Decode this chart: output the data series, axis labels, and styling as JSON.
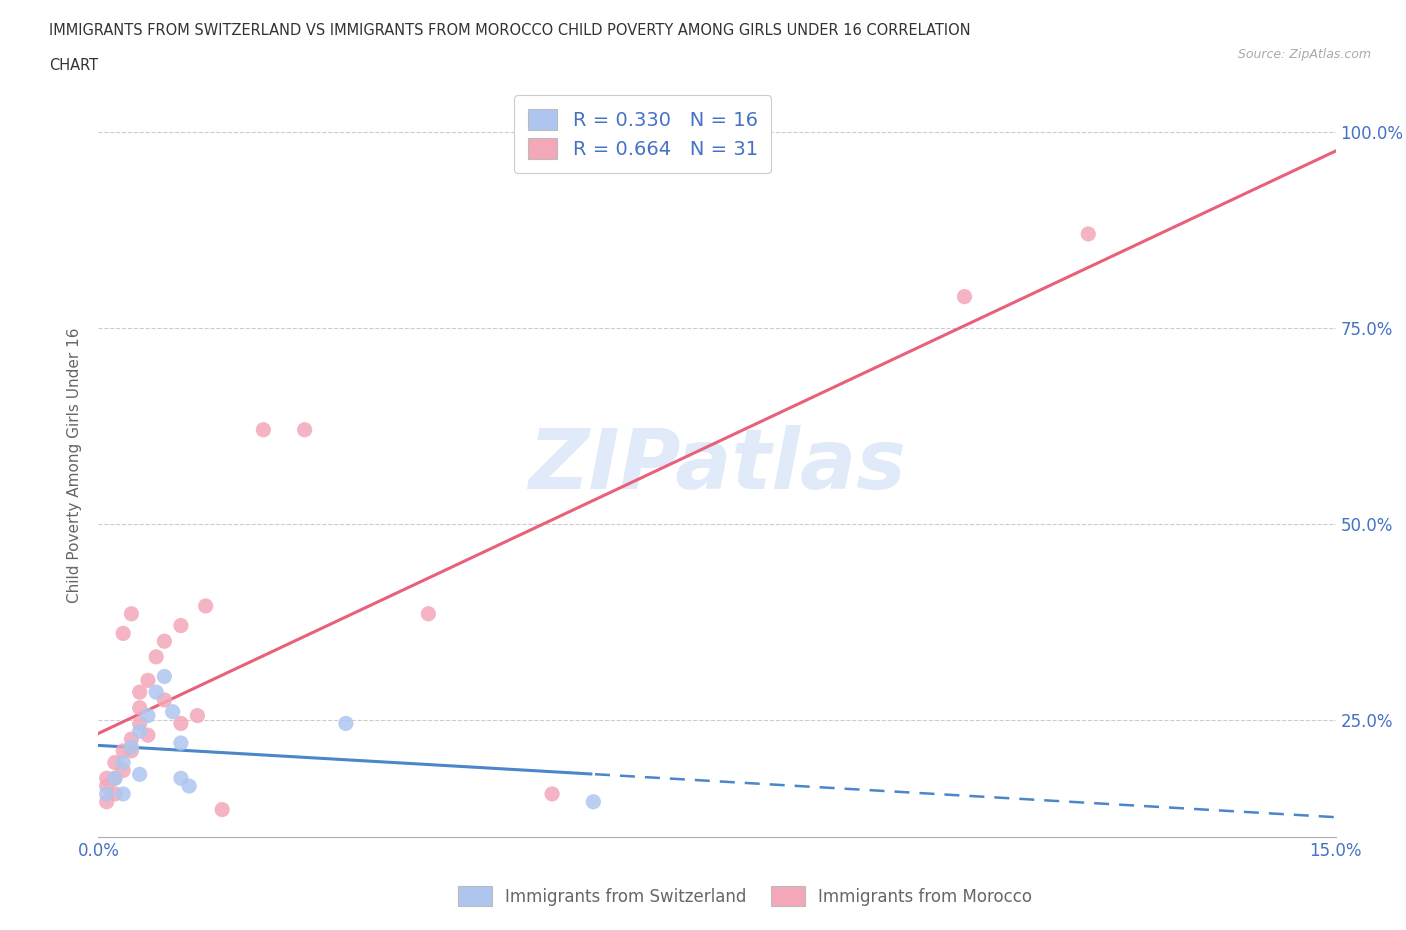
{
  "title_line1": "IMMIGRANTS FROM SWITZERLAND VS IMMIGRANTS FROM MOROCCO CHILD POVERTY AMONG GIRLS UNDER 16 CORRELATION",
  "title_line2": "CHART",
  "source": "Source: ZipAtlas.com",
  "ylabel": "Child Poverty Among Girls Under 16",
  "xlim": [
    0.0,
    0.15
  ],
  "ylim": [
    0.1,
    1.05
  ],
  "xtick_positions": [
    0.0,
    0.025,
    0.05,
    0.075,
    0.1,
    0.125,
    0.15
  ],
  "xticklabels": [
    "0.0%",
    "",
    "",
    "",
    "",
    "",
    "15.0%"
  ],
  "yticks": [
    0.25,
    0.5,
    0.75,
    1.0
  ],
  "yticklabels": [
    "25.0%",
    "50.0%",
    "75.0%",
    "100.0%"
  ],
  "watermark": "ZIPatlas",
  "switzerland_color": "#aec6ef",
  "morocco_color": "#f4a7b9",
  "switzerland_line_color": "#4a86c8",
  "morocco_line_color": "#e8607a",
  "r_switzerland": 0.33,
  "n_switzerland": 16,
  "r_morocco": 0.664,
  "n_morocco": 31,
  "legend_r_color": "#4472c4",
  "sw_x": [
    0.001,
    0.002,
    0.003,
    0.003,
    0.004,
    0.005,
    0.005,
    0.006,
    0.007,
    0.008,
    0.009,
    0.01,
    0.01,
    0.011,
    0.03,
    0.06
  ],
  "sw_y": [
    0.155,
    0.175,
    0.155,
    0.195,
    0.215,
    0.235,
    0.18,
    0.255,
    0.285,
    0.305,
    0.26,
    0.22,
    0.175,
    0.165,
    0.245,
    0.145
  ],
  "mo_x": [
    0.001,
    0.001,
    0.001,
    0.002,
    0.002,
    0.002,
    0.003,
    0.003,
    0.003,
    0.004,
    0.004,
    0.004,
    0.005,
    0.005,
    0.005,
    0.006,
    0.006,
    0.007,
    0.008,
    0.008,
    0.01,
    0.01,
    0.012,
    0.013,
    0.015,
    0.02,
    0.025,
    0.04,
    0.055,
    0.105,
    0.12
  ],
  "mo_y": [
    0.145,
    0.165,
    0.175,
    0.155,
    0.175,
    0.195,
    0.185,
    0.21,
    0.36,
    0.21,
    0.225,
    0.385,
    0.245,
    0.265,
    0.285,
    0.3,
    0.23,
    0.33,
    0.35,
    0.275,
    0.37,
    0.245,
    0.255,
    0.395,
    0.135,
    0.62,
    0.62,
    0.385,
    0.155,
    0.79,
    0.87
  ],
  "background_color": "#ffffff",
  "grid_color": "#cccccc"
}
